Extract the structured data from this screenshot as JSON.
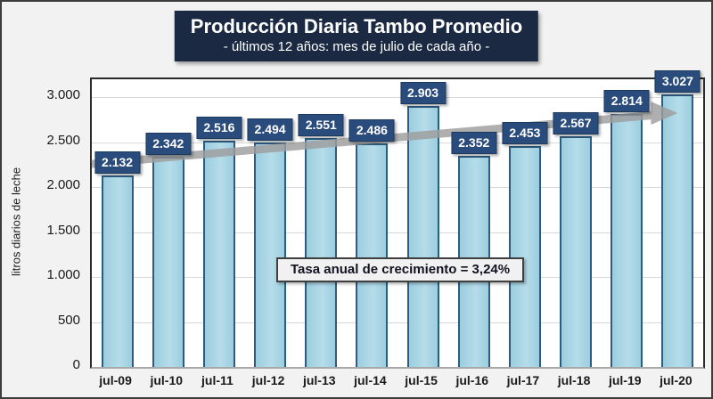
{
  "header": {
    "title": "Producción Diaria Tambo Promedio",
    "subtitle": "- últimos 12 años: mes de julio de cada año -"
  },
  "annotation": {
    "text": "Tasa anual de crecimiento = 3,24%"
  },
  "chart_data": {
    "type": "bar",
    "title": "Producción Diaria Tambo Promedio",
    "subtitle": "- últimos 12 años: mes de julio de cada año -",
    "categories": [
      "jul-09",
      "jul-10",
      "jul-11",
      "jul-12",
      "jul-13",
      "jul-14",
      "jul-15",
      "jul-16",
      "jul-17",
      "jul-18",
      "jul-19",
      "jul-20"
    ],
    "values": [
      2132,
      2342,
      2516,
      2494,
      2551,
      2486,
      2903,
      2352,
      2453,
      2567,
      2814,
      3027
    ],
    "value_labels": [
      "2.132",
      "2.342",
      "2.516",
      "2.494",
      "2.551",
      "2.486",
      "2.903",
      "2.352",
      "2.453",
      "2.567",
      "2.814",
      "3.027"
    ],
    "xlabel": "",
    "ylabel": "litros diarios de leche",
    "ylim": [
      0,
      3200
    ],
    "yticks": [
      0,
      500,
      1000,
      1500,
      2000,
      2500,
      3000
    ],
    "ytick_labels": [
      "0",
      "500",
      "1.000",
      "1.500",
      "2.000",
      "2.500",
      "3.000"
    ],
    "grid": true,
    "legend": "none",
    "annotation": "Tasa anual de crecimiento = 3,24%",
    "trendline": {
      "type": "linear",
      "style": "thick-gray-arrow"
    }
  },
  "colors": {
    "title_bg": "#1B2A42",
    "label_bg": "#2A4C7C",
    "bar_fill": "#9CCEDF",
    "bar_border": "#2D5C83",
    "grid": "#D9D9D9",
    "trend": "#9E9E9E",
    "canvas_bg": "#F2F2F2",
    "annotation_bg": "#F1F1F1"
  }
}
